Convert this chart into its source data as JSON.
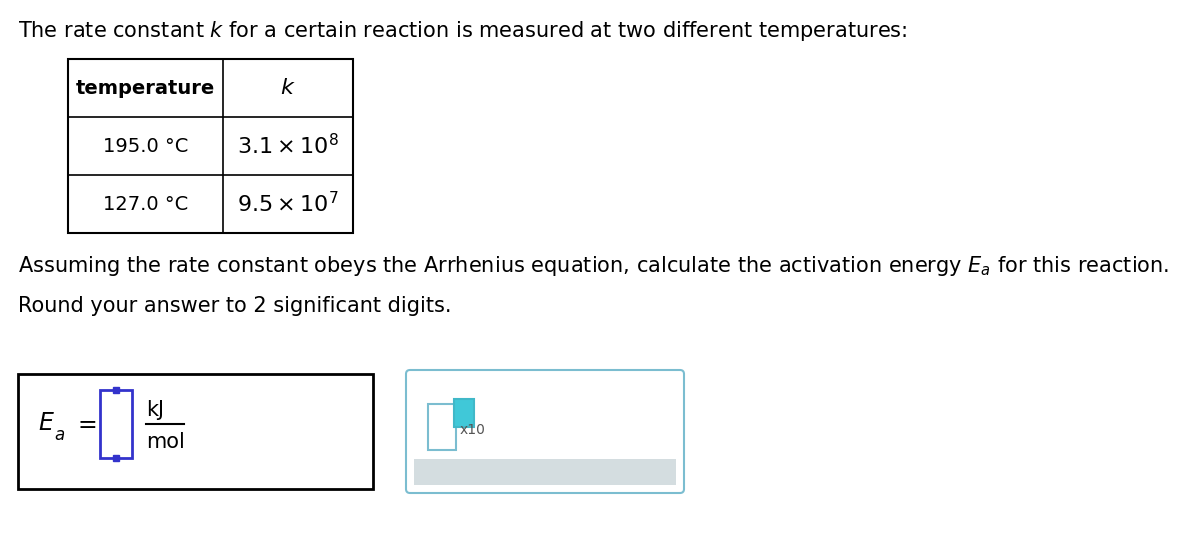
{
  "title_text": "The rate constant $k$ for a certain reaction is measured at two different temperatures:",
  "table_header_temp": "temperature",
  "table_header_k": "$k$",
  "table_rows": [
    [
      "195.0 °C",
      "$3.1 \\times 10^8$"
    ],
    [
      "127.0 °C",
      "$9.5 \\times 10^7$"
    ]
  ],
  "line2": "Assuming the rate constant obeys the Arrhenius equation, calculate the activation energy $E_a$ for this reaction.",
  "line3": "Round your answer to 2 significant digits.",
  "bg_color": "#ffffff",
  "text_color": "#000000",
  "table_border_color": "#000000",
  "input_box_border": "#3333cc",
  "right_box_border": "#7bbdd0",
  "x10_box1_border": "#7bbdd0",
  "x10_box2_border": "#40b8c8",
  "x10_box2_fill": "#40c8d8",
  "gray_fill": "#d4dde0",
  "font_size_main": 15,
  "font_size_table": 14
}
